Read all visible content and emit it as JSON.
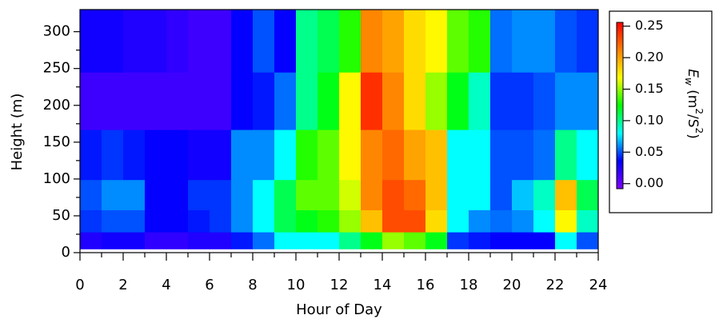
{
  "chart_data": {
    "type": "heatmap",
    "xlabel": "Hour of Day",
    "ylabel": "Height (m)",
    "colorbar_label_parts": [
      "E",
      "w",
      " (m",
      "2",
      "/S",
      "2",
      ")"
    ],
    "xbins": [
      0,
      1,
      2,
      3,
      4,
      5,
      6,
      7,
      8,
      9,
      10,
      11,
      12,
      13,
      14,
      15,
      16,
      17,
      18,
      19,
      20,
      21,
      22,
      23,
      24
    ],
    "ybins": [
      5,
      28,
      58,
      99,
      167,
      245,
      330
    ],
    "z": [
      [
        0.025,
        0.03,
        0.03,
        0.02,
        0.02,
        0.025,
        0.025,
        0.04,
        0.055,
        0.08,
        0.08,
        0.08,
        0.1,
        0.12,
        0.15,
        0.14,
        0.12,
        0.045,
        0.04,
        0.035,
        0.035,
        0.035,
        0.08,
        0.05
      ],
      [
        0.045,
        0.05,
        0.05,
        0.035,
        0.035,
        0.04,
        0.045,
        0.06,
        0.08,
        0.11,
        0.12,
        0.13,
        0.15,
        0.19,
        0.23,
        0.23,
        0.18,
        0.08,
        0.06,
        0.055,
        0.06,
        0.08,
        0.17,
        0.09
      ],
      [
        0.05,
        0.06,
        0.06,
        0.035,
        0.035,
        0.045,
        0.045,
        0.06,
        0.08,
        0.11,
        0.14,
        0.14,
        0.16,
        0.21,
        0.23,
        0.22,
        0.19,
        0.08,
        0.08,
        0.05,
        0.07,
        0.09,
        0.19,
        0.11
      ],
      [
        0.04,
        0.045,
        0.04,
        0.035,
        0.035,
        0.03,
        0.03,
        0.06,
        0.06,
        0.08,
        0.13,
        0.14,
        0.17,
        0.21,
        0.22,
        0.2,
        0.19,
        0.08,
        0.08,
        0.05,
        0.05,
        0.055,
        0.1,
        0.08
      ],
      [
        0.015,
        0.015,
        0.015,
        0.015,
        0.015,
        0.015,
        0.015,
        0.035,
        0.04,
        0.055,
        0.1,
        0.12,
        0.17,
        0.24,
        0.21,
        0.18,
        0.15,
        0.12,
        0.09,
        0.045,
        0.045,
        0.05,
        0.06,
        0.06
      ],
      [
        0.03,
        0.03,
        0.025,
        0.025,
        0.02,
        0.015,
        0.015,
        0.035,
        0.05,
        0.035,
        0.1,
        0.11,
        0.13,
        0.21,
        0.2,
        0.18,
        0.17,
        0.14,
        0.13,
        0.055,
        0.06,
        0.06,
        0.05,
        0.045
      ]
    ],
    "xlim": [
      0,
      24
    ],
    "xticks": [
      0,
      2,
      4,
      6,
      8,
      10,
      12,
      14,
      16,
      18,
      20,
      22,
      24
    ],
    "ylim": [
      0,
      330
    ],
    "yticks": [
      0,
      50,
      100,
      150,
      200,
      250,
      300
    ],
    "clim": [
      -0.008,
      0.256
    ],
    "cticks": [
      {
        "value": 0,
        "label": "0.00"
      },
      {
        "value": 0.05,
        "label": "0.05"
      },
      {
        "value": 0.1,
        "label": "0.10"
      },
      {
        "value": 0.15,
        "label": "0.15"
      },
      {
        "value": 0.2,
        "label": "0.20"
      },
      {
        "value": 0.25,
        "label": "0.25"
      }
    ],
    "colormap": [
      "#8000ff",
      "#0000ff",
      "#00ffff",
      "#00ff00",
      "#ffff00",
      "#ff8000",
      "#ff0000"
    ]
  }
}
